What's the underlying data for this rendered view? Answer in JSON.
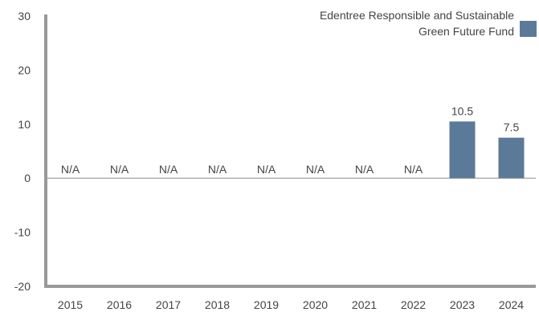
{
  "chart_data": {
    "type": "bar",
    "categories": [
      "2015",
      "2016",
      "2017",
      "2018",
      "2019",
      "2020",
      "2021",
      "2022",
      "2023",
      "2024"
    ],
    "series": [
      {
        "name": "Edentree Responsible and Sustainable Green Future Fund",
        "values": [
          null,
          null,
          null,
          null,
          null,
          null,
          null,
          null,
          10.5,
          7.5
        ],
        "labels": [
          "N/A",
          "N/A",
          "N/A",
          "N/A",
          "N/A",
          "N/A",
          "N/A",
          "N/A",
          "10.5",
          "7.5"
        ],
        "color": "#5b7a9a"
      }
    ],
    "ylim": [
      -20,
      30
    ],
    "yticks": [
      "30",
      "20",
      "10",
      "0",
      "-10",
      "-20"
    ],
    "legend": {
      "line1": "Edentree Responsible and Sustainable",
      "line2": "Green Future Fund",
      "position": "top-right"
    },
    "grid": false
  }
}
